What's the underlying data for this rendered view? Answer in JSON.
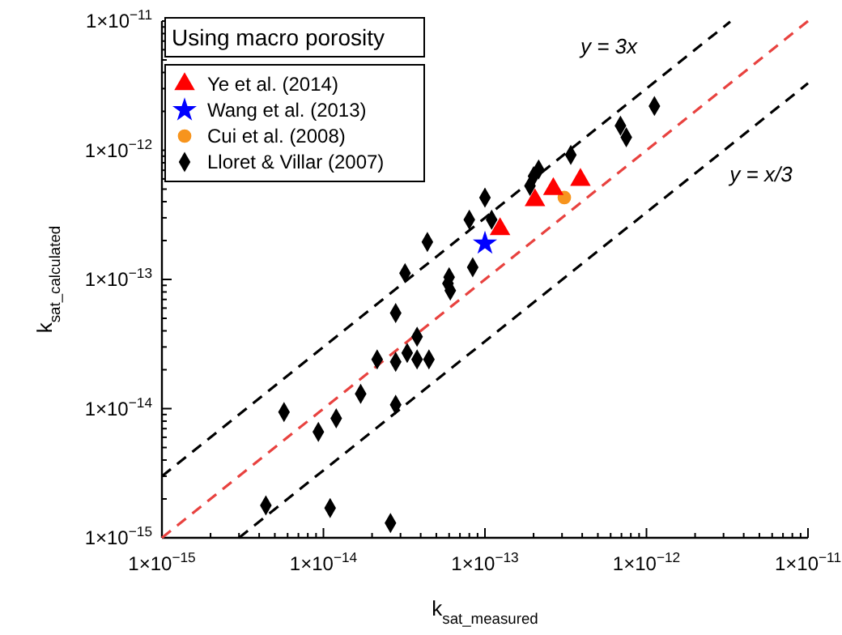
{
  "chart_data": {
    "type": "scatter",
    "title": "Using macro porosity",
    "xlabel": "k$_{sat_measured}$",
    "ylabel": "k$_{sat_calculated}$",
    "log": "xy",
    "legend": "top left",
    "grid": false,
    "xlim": [
      1e-15,
      1e-11
    ],
    "ylim": [
      1e-15,
      1e-11
    ],
    "xticks": [
      {
        "value": 1e-15,
        "label": "1×10$^{−15}$"
      },
      {
        "value": 2e-15,
        "label": null
      },
      {
        "value": 3e-15,
        "label": null
      },
      {
        "value": 4e-15,
        "label": null
      },
      {
        "value": 5e-15,
        "label": null
      },
      {
        "value": 6e-15,
        "label": null
      },
      {
        "value": 7e-15,
        "label": null
      },
      {
        "value": 8e-15,
        "label": null
      },
      {
        "value": 9e-15,
        "label": null
      },
      {
        "value": 1e-14,
        "label": "1×10$^{−14}$"
      },
      {
        "value": 2e-14,
        "label": null
      },
      {
        "value": 3e-14,
        "label": null
      },
      {
        "value": 4e-14,
        "label": null
      },
      {
        "value": 5e-14,
        "label": null
      },
      {
        "value": 6e-14,
        "label": null
      },
      {
        "value": 7e-14,
        "label": null
      },
      {
        "value": 8e-14,
        "label": null
      },
      {
        "value": 9e-14,
        "label": null
      },
      {
        "value": 1e-13,
        "label": "1×10$^{−13}$"
      },
      {
        "value": 2e-13,
        "label": null
      },
      {
        "value": 3e-13,
        "label": null
      },
      {
        "value": 4e-13,
        "label": null
      },
      {
        "value": 5e-13,
        "label": null
      },
      {
        "value": 6e-13,
        "label": null
      },
      {
        "value": 7e-13,
        "label": null
      },
      {
        "value": 8e-13,
        "label": null
      },
      {
        "value": 9e-13,
        "label": null
      },
      {
        "value": 1e-12,
        "label": "1×10$^{−12}$"
      },
      {
        "value": 2e-12,
        "label": null
      },
      {
        "value": 3e-12,
        "label": null
      },
      {
        "value": 4e-12,
        "label": null
      },
      {
        "value": 5e-12,
        "label": null
      },
      {
        "value": 6e-12,
        "label": null
      },
      {
        "value": 7e-12,
        "label": null
      },
      {
        "value": 8e-12,
        "label": null
      },
      {
        "value": 9e-12,
        "label": null
      },
      {
        "value": 1e-11,
        "label": "1×10$^{−11}$"
      }
    ],
    "yticks": [
      {
        "value": 1e-15,
        "label": "1×10$^{−15}$"
      },
      {
        "value": 2e-15,
        "label": null
      },
      {
        "value": 3e-15,
        "label": null
      },
      {
        "value": 4e-15,
        "label": null
      },
      {
        "value": 5e-15,
        "label": null
      },
      {
        "value": 6e-15,
        "label": null
      },
      {
        "value": 7e-15,
        "label": null
      },
      {
        "value": 8e-15,
        "label": null
      },
      {
        "value": 9e-15,
        "label": null
      },
      {
        "value": 1e-14,
        "label": "1×10$^{−14}$"
      },
      {
        "value": 2e-14,
        "label": null
      },
      {
        "value": 3e-14,
        "label": null
      },
      {
        "value": 4e-14,
        "label": null
      },
      {
        "value": 5e-14,
        "label": null
      },
      {
        "value": 6e-14,
        "label": null
      },
      {
        "value": 7e-14,
        "label": null
      },
      {
        "value": 8e-14,
        "label": null
      },
      {
        "value": 9e-14,
        "label": null
      },
      {
        "value": 1e-13,
        "label": "1×10$^{−13}$"
      },
      {
        "value": 2e-13,
        "label": null
      },
      {
        "value": 3e-13,
        "label": null
      },
      {
        "value": 4e-13,
        "label": null
      },
      {
        "value": 5e-13,
        "label": null
      },
      {
        "value": 6e-13,
        "label": null
      },
      {
        "value": 7e-13,
        "label": null
      },
      {
        "value": 8e-13,
        "label": null
      },
      {
        "value": 9e-13,
        "label": null
      },
      {
        "value": 1e-12,
        "label": "1×10$^{−12}$"
      },
      {
        "value": 2e-12,
        "label": null
      },
      {
        "value": 3e-12,
        "label": null
      },
      {
        "value": 4e-12,
        "label": null
      },
      {
        "value": 5e-12,
        "label": null
      },
      {
        "value": 6e-12,
        "label": null
      },
      {
        "value": 7e-12,
        "label": null
      },
      {
        "value": 8e-12,
        "label": null
      },
      {
        "value": 9e-12,
        "label": null
      },
      {
        "value": 1e-11,
        "label": "1×10$^{−11}$"
      }
    ],
    "annotations": [
      "y = 3x",
      "y = x/3"
    ],
    "series": [
      {
        "type": "line",
        "color": "#000000",
        "line_style": "dashed",
        "x": [
          1e-15,
          3.3e-12
        ],
        "values": [
          3e-15,
          9.9e-12
        ]
      },
      {
        "type": "line",
        "color": "#e8423f",
        "line_style": "dashed",
        "x": [
          1e-15,
          1e-11
        ],
        "values": [
          1e-15,
          1e-11
        ]
      },
      {
        "type": "line",
        "color": "#000000",
        "line_style": "dashed",
        "x": [
          3e-15,
          1e-11
        ],
        "values": [
          1e-15,
          3.3e-12
        ]
      },
      {
        "name": "Lloret & Villar (2007)",
        "color": "#000000",
        "marker": "diamond",
        "x": [
          1.12e-12,
          6.9e-13,
          7.5e-13,
          3.4e-13,
          2.15e-13,
          2e-13,
          1.9e-13,
          1e-13,
          8e-14,
          1.1e-13,
          4.4e-14,
          8.4e-14,
          3.2e-14,
          6e-14,
          5.9e-14,
          6.1e-14,
          2.8e-14,
          3.8e-14,
          2.15e-14,
          2.8e-14,
          3.3e-14,
          3.8e-14,
          4.5e-14,
          1.7e-14,
          2.8e-14,
          5.7e-15,
          1.2e-14,
          9.3e-15,
          4.4e-15,
          1.1e-14,
          2.6e-14
        ],
        "values": [
          2.2e-12,
          1.55e-12,
          1.26e-12,
          9.2e-13,
          7.1e-13,
          6.3e-13,
          5.3e-13,
          4.3e-13,
          2.9e-13,
          2.9e-13,
          1.95e-13,
          1.24e-13,
          1.12e-13,
          1.04e-13,
          9.3e-14,
          8.2e-14,
          5.5e-14,
          3.6e-14,
          2.4e-14,
          2.3e-14,
          2.7e-14,
          2.4e-14,
          2.4e-14,
          1.3e-14,
          1.07e-14,
          9.4e-15,
          8.4e-15,
          6.6e-15,
          1.78e-15,
          1.7e-15,
          1.3e-15
        ]
      },
      {
        "name": "Cui et al. (2008)",
        "color": "#f7941d",
        "marker": "circle",
        "x": [
          3.1e-13
        ],
        "values": [
          4.3e-13
        ]
      },
      {
        "name": "Wang et al. (2013)",
        "color": "#0000ff",
        "marker": "star",
        "x": [
          1e-13
        ],
        "values": [
          1.9e-13
        ]
      },
      {
        "name": "Ye et al. (2014)",
        "color": "#ff0000",
        "marker": "triangle",
        "x": [
          1.24e-13,
          2.04e-13,
          2.65e-13,
          3.9e-13
        ],
        "values": [
          2.45e-13,
          4.1e-13,
          5e-13,
          5.9e-13
        ]
      }
    ]
  }
}
